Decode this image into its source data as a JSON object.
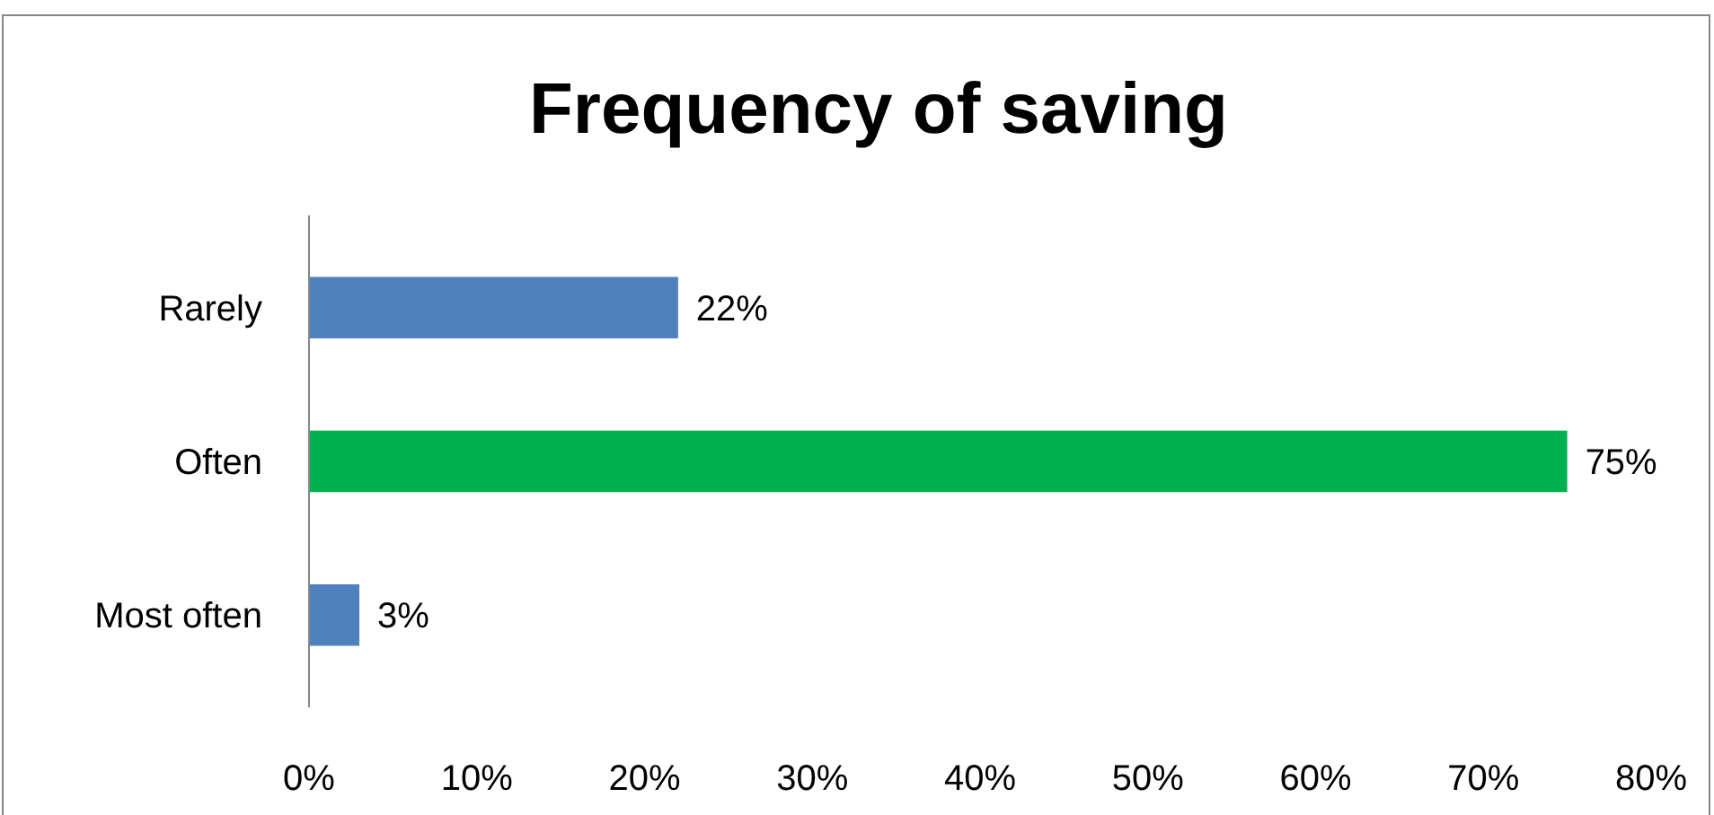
{
  "chart_data": {
    "type": "bar",
    "title": "Frequency of saving",
    "orientation": "horizontal",
    "categories": [
      "Rarely",
      "Often",
      "Most often"
    ],
    "values": [
      22,
      75,
      3
    ],
    "colors": [
      "#4f81bd",
      "#00b050",
      "#4f81bd"
    ],
    "value_labels": [
      "22%",
      "75%",
      "3%"
    ],
    "xlim": [
      0,
      80
    ],
    "xticks": [
      {
        "value": 0,
        "label": "0%"
      },
      {
        "value": 10,
        "label": "10%"
      },
      {
        "value": 20,
        "label": "20%"
      },
      {
        "value": 30,
        "label": "30%"
      },
      {
        "value": 40,
        "label": "40%"
      },
      {
        "value": 50,
        "label": "50%"
      },
      {
        "value": 60,
        "label": "60%"
      },
      {
        "value": 70,
        "label": "70%"
      },
      {
        "value": 80,
        "label": "80%"
      }
    ]
  }
}
